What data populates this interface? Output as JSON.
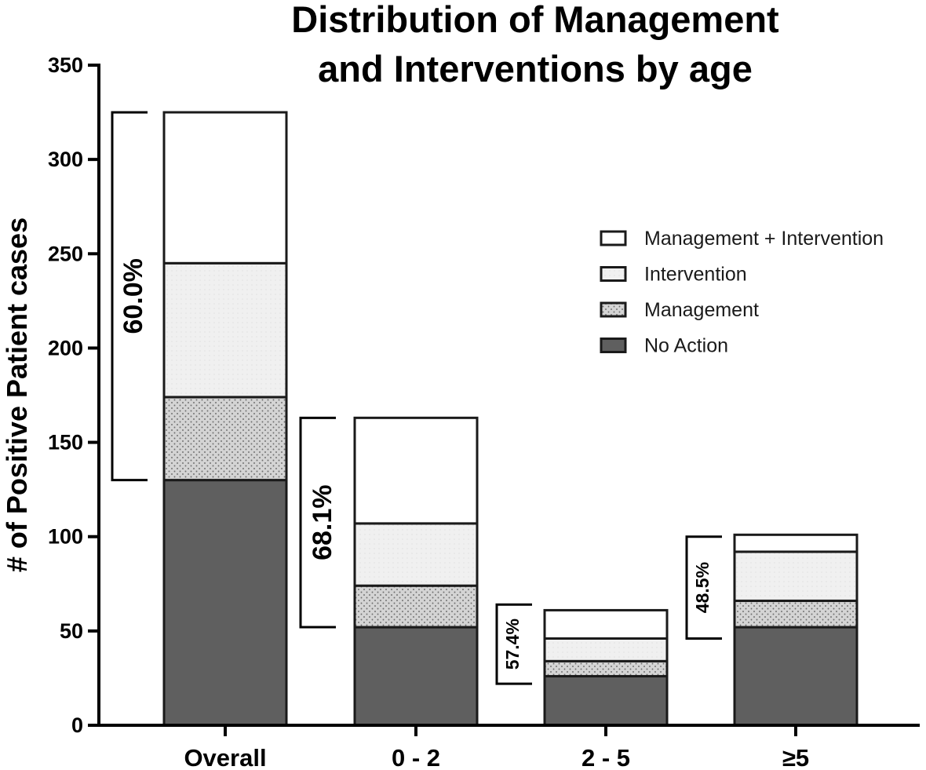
{
  "chart_data": {
    "type": "bar",
    "stacked": true,
    "title_lines": [
      "Distribution of Management",
      "and Interventions by age"
    ],
    "ylabel": "# of Positive Patient cases",
    "ylim": [
      0,
      350
    ],
    "yticks": [
      0,
      50,
      100,
      150,
      200,
      250,
      300,
      350
    ],
    "categories": [
      "Overall",
      "0 - 2",
      "2 - 5",
      "≥5"
    ],
    "series": [
      {
        "name": "No Action",
        "values": [
          130,
          52,
          26,
          52
        ],
        "color": "#5f5f5f",
        "pattern": "solid"
      },
      {
        "name": "Management",
        "values": [
          44,
          22,
          8,
          14
        ],
        "color": "#d4d4d4",
        "pattern": "dots"
      },
      {
        "name": "Intervention",
        "values": [
          71,
          33,
          12,
          26
        ],
        "color": "#efefef",
        "pattern": "fine"
      },
      {
        "name": "Management + Intervention",
        "values": [
          80,
          56,
          15,
          9
        ],
        "color": "#ffffff",
        "pattern": "solid"
      }
    ],
    "legend_order": [
      "Management + Intervention",
      "Intervention",
      "Management",
      "No Action"
    ],
    "legend_position": "right",
    "brackets": [
      {
        "label": "60.0%",
        "from": 130,
        "to": 325
      },
      {
        "label": "68.1%",
        "from": 52,
        "to": 163
      },
      {
        "label": "57.4%",
        "from": 22,
        "to": 64
      },
      {
        "label": "48.5%",
        "from": 46,
        "to": 100
      }
    ],
    "grid": false
  }
}
